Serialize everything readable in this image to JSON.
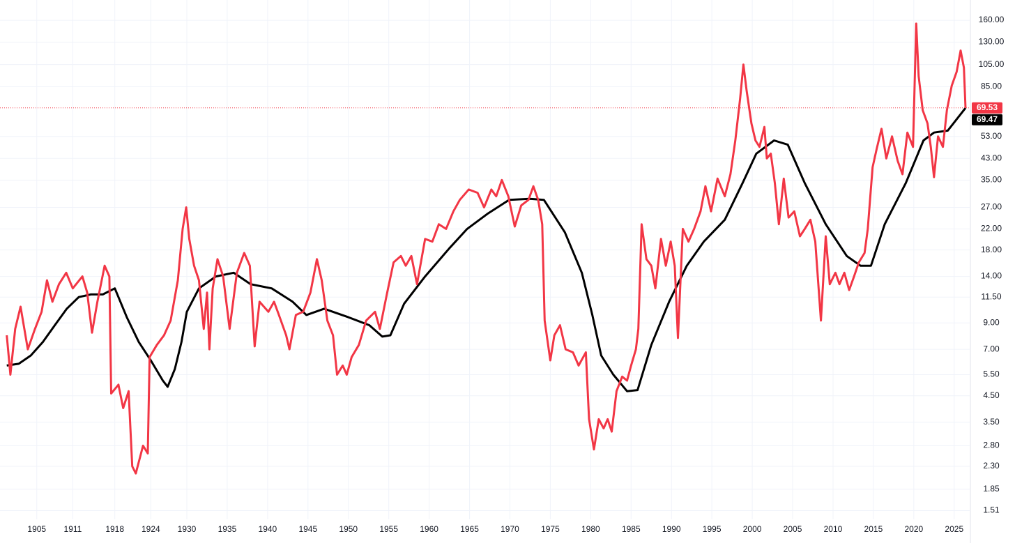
{
  "chart_data": {
    "type": "line",
    "log_scale": true,
    "grid": true,
    "xlim": [
      1899.8,
      2026.4
    ],
    "xticks": [
      1905,
      1911,
      1918,
      1924,
      1930,
      1935,
      1940,
      1945,
      1950,
      1955,
      1960,
      1965,
      1970,
      1975,
      1980,
      1985,
      1990,
      1995,
      2000,
      2005,
      2010,
      2015,
      2020,
      2025
    ],
    "ylim": [
      1.39,
      194
    ],
    "yticks": [
      {
        "value": 1.51,
        "label": "1.51"
      },
      {
        "value": 1.85,
        "label": "1.85"
      },
      {
        "value": 2.3,
        "label": "2.30"
      },
      {
        "value": 2.8,
        "label": "2.80"
      },
      {
        "value": 3.5,
        "label": "3.50"
      },
      {
        "value": 4.5,
        "label": "4.50"
      },
      {
        "value": 5.5,
        "label": "5.50"
      },
      {
        "value": 7,
        "label": "7.00"
      },
      {
        "value": 9,
        "label": "9.00"
      },
      {
        "value": 11.5,
        "label": "11.50"
      },
      {
        "value": 14,
        "label": "14.00"
      },
      {
        "value": 18,
        "label": "18.00"
      },
      {
        "value": 22,
        "label": "22.00"
      },
      {
        "value": 27,
        "label": "27.00"
      },
      {
        "value": 35,
        "label": "35.00"
      },
      {
        "value": 43,
        "label": "43.00"
      },
      {
        "value": 53,
        "label": "53.00"
      },
      {
        "value": 85,
        "label": "85.00"
      },
      {
        "value": 105,
        "label": "105.00"
      },
      {
        "value": 130,
        "label": "130.00"
      },
      {
        "value": 160,
        "label": "160.00"
      }
    ],
    "series": [
      {
        "color": "#f23645",
        "x": [
          1900.0,
          1900.6,
          1901.4,
          1902.3,
          1903.5,
          1904.7,
          1905.8,
          1906.7,
          1907.6,
          1908.7,
          1909.9,
          1911.0,
          1912.6,
          1913.4,
          1914.2,
          1915.1,
          1916.3,
          1917.1,
          1917.4,
          1918.6,
          1919.4,
          1920.3,
          1920.9,
          1921.5,
          1922.7,
          1923.5,
          1923.8,
          1925.0,
          1926.2,
          1927.3,
          1928.5,
          1929.3,
          1929.9,
          1930.3,
          1930.9,
          1931.5,
          1932.1,
          1932.5,
          1932.8,
          1933.2,
          1933.8,
          1934.5,
          1935.3,
          1936.2,
          1937.1,
          1937.8,
          1938.4,
          1939.0,
          1940.1,
          1940.8,
          1941.4,
          1942.3,
          1942.7,
          1943.5,
          1944.4,
          1945.3,
          1946.1,
          1946.7,
          1947.4,
          1948.1,
          1948.6,
          1949.3,
          1949.8,
          1950.4,
          1951.3,
          1952.2,
          1953.3,
          1953.9,
          1954.8,
          1955.6,
          1956.5,
          1957.1,
          1957.8,
          1958.5,
          1959.5,
          1960.4,
          1961.2,
          1962.1,
          1963.0,
          1963.8,
          1964.9,
          1966.0,
          1966.8,
          1967.7,
          1968.3,
          1969.0,
          1969.8,
          1970.6,
          1971.4,
          1972.3,
          1972.9,
          1973.5,
          1974.0,
          1974.3,
          1975.0,
          1975.5,
          1976.2,
          1976.9,
          1977.8,
          1978.5,
          1979.4,
          1979.8,
          1980.4,
          1981.0,
          1981.6,
          1982.1,
          1982.6,
          1983.2,
          1983.9,
          1984.5,
          1985.0,
          1985.6,
          1985.9,
          1986.3,
          1986.9,
          1987.5,
          1988.0,
          1988.7,
          1989.3,
          1989.9,
          1990.4,
          1990.8,
          1991.4,
          1992.1,
          1992.8,
          1993.6,
          1994.2,
          1994.9,
          1995.7,
          1996.6,
          1997.3,
          1997.9,
          1998.5,
          1998.9,
          1999.3,
          1999.9,
          2000.4,
          2000.9,
          2001.5,
          2001.8,
          2002.3,
          2002.8,
          2003.3,
          2003.9,
          2004.5,
          2005.2,
          2005.9,
          2006.5,
          2007.2,
          2007.8,
          2008.5,
          2009.1,
          2009.6,
          2010.3,
          2010.8,
          2011.4,
          2012.0,
          2012.6,
          2013.2,
          2013.9,
          2014.3,
          2014.9,
          2015.4,
          2016.0,
          2016.6,
          2017.3,
          2018.0,
          2018.6,
          2019.2,
          2019.9,
          2020.3,
          2020.6,
          2021.1,
          2021.7,
          2022.1,
          2022.5,
          2023.0,
          2023.6,
          2024.1,
          2024.7,
          2025.3,
          2025.8,
          2026.2,
          2026.4
        ],
        "values": [
          8.0,
          5.5,
          8.5,
          10.5,
          7.0,
          8.5,
          10,
          13.5,
          11,
          13,
          14.5,
          12.5,
          14,
          12,
          8.2,
          11,
          15.5,
          14,
          4.6,
          5.0,
          4.0,
          4.7,
          2.3,
          2.15,
          2.8,
          2.6,
          6.5,
          7.3,
          8,
          9.2,
          13.5,
          22,
          27,
          20,
          15.5,
          13.5,
          8.5,
          12,
          7,
          12.5,
          16.5,
          14,
          8.5,
          14.5,
          17.5,
          15.5,
          7.2,
          11,
          10,
          11,
          9.7,
          8,
          7,
          9.7,
          10,
          12,
          16.5,
          13.5,
          9.2,
          8,
          5.5,
          6,
          5.5,
          6.5,
          7.3,
          9.2,
          10,
          8.5,
          12,
          16,
          17,
          15.5,
          17,
          13,
          20,
          19.5,
          23,
          22,
          26,
          29,
          32,
          31,
          27,
          32,
          30,
          35,
          30,
          22.5,
          27.5,
          29,
          33,
          29,
          23,
          9.2,
          6.3,
          8,
          8.8,
          7,
          6.8,
          6,
          6.8,
          3.6,
          2.7,
          3.6,
          3.3,
          3.6,
          3.2,
          4.7,
          5.4,
          5.2,
          6,
          7,
          8.5,
          23,
          16.5,
          15.5,
          12.5,
          20,
          15.5,
          19.5,
          15.5,
          7.8,
          22,
          19.5,
          22,
          26,
          33,
          26,
          35.5,
          30,
          37,
          51,
          76,
          105,
          82,
          60,
          51,
          48,
          58,
          43,
          45,
          34,
          23,
          35.5,
          24.5,
          26,
          20.5,
          22,
          24,
          19.5,
          9.2,
          20.5,
          13,
          14.5,
          13,
          14.5,
          12.3,
          14,
          16,
          17.5,
          22,
          39.5,
          47,
          57,
          43,
          53,
          42,
          37,
          55,
          48,
          155,
          94,
          68,
          60,
          48,
          36,
          53,
          48,
          68,
          86,
          98,
          120,
          102,
          69.53
        ]
      },
      {
        "color": "#000000",
        "x": [
          1900.0,
          1902,
          1904,
          1906,
          1908,
          1910,
          1912,
          1914,
          1916,
          1918,
          1920,
          1922,
          1924,
          1926,
          1926.8,
          1928,
          1929.1,
          1930,
          1931.5,
          1933.6,
          1935.8,
          1937.9,
          1940.5,
          1943.1,
          1944.8,
          1947.0,
          1950.0,
          1952.6,
          1954.2,
          1955.2,
          1956.9,
          1959.5,
          1962.5,
          1964.7,
          1967.3,
          1969.9,
          1972.4,
          1974.2,
          1976.8,
          1978.9,
          1980.2,
          1981.3,
          1982.8,
          1984.5,
          1985.8,
          1987.5,
          1989.7,
          1991.9,
          1994.0,
          1996.6,
          1998.8,
          2000.5,
          2002.7,
          2004.4,
          2006.5,
          2009.1,
          2011.7,
          2013.4,
          2014.7,
          2016.4,
          2019.0,
          2021.2,
          2022.5,
          2024.2,
          2026.4
        ],
        "values": [
          6.0,
          6.1,
          6.6,
          7.5,
          8.8,
          10.3,
          11.5,
          11.8,
          11.8,
          12.5,
          9.5,
          7.5,
          6.3,
          5.2,
          4.9,
          5.8,
          7.5,
          10,
          12.5,
          14,
          14.5,
          13,
          12.5,
          11,
          9.7,
          10.3,
          9.5,
          8.8,
          7.9,
          8,
          10.8,
          14,
          18.3,
          22,
          25.5,
          29,
          29.3,
          29,
          21.3,
          14.5,
          9.7,
          6.6,
          5.5,
          4.7,
          4.75,
          7.3,
          11,
          15.5,
          19.5,
          24,
          34,
          45,
          51,
          49,
          34,
          23,
          17,
          15.5,
          15.5,
          23,
          34,
          51,
          55,
          56,
          69.47
        ]
      }
    ]
  }
}
